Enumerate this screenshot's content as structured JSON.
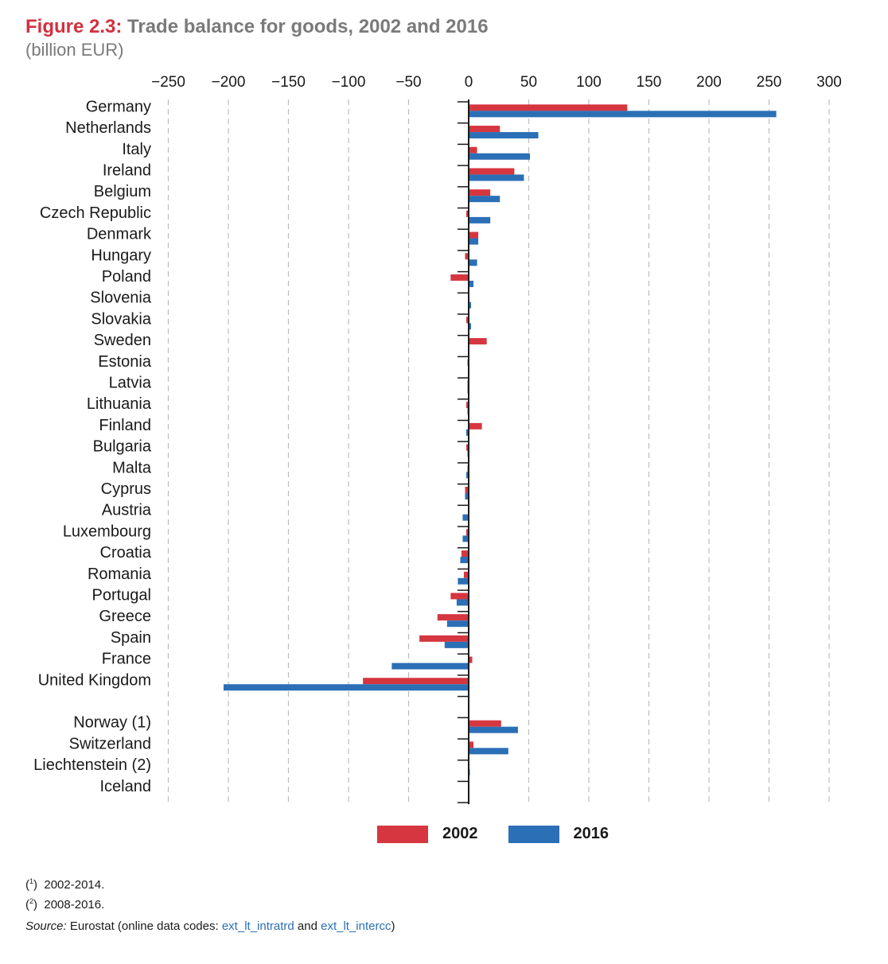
{
  "header": {
    "figure_label": "Figure 2.3:",
    "title": "Trade balance for goods, 2002 and 2016",
    "subtitle": "(billion EUR)"
  },
  "colors": {
    "s2002": "#d6363f",
    "s2016": "#2b6fb6",
    "grid": "#bdbdbd"
  },
  "legend": {
    "s2002": "2002",
    "s2016": "2016"
  },
  "notes": {
    "n1_mark": "1",
    "n1_text": "2002-2014.",
    "n2_mark": "2",
    "n2_text": "2008-2016.",
    "source_label": "Source:",
    "source_text": "Eurostat (online data codes:",
    "code1": "ext_lt_intratrd",
    "and": "and",
    "code2": "ext_lt_intercc",
    "close": ")"
  },
  "chart_data": {
    "type": "bar",
    "orientation": "horizontal",
    "title": "Trade balance for goods, 2002 and 2016",
    "unit": "billion EUR",
    "xlim": [
      -250,
      300
    ],
    "ticks": [
      -250,
      -200,
      -150,
      -100,
      -50,
      0,
      50,
      100,
      150,
      200,
      250,
      300
    ],
    "tick_labels": [
      "−250",
      "−200",
      "−150",
      "−100",
      "−50",
      "0",
      "50",
      "100",
      "150",
      "200",
      "250",
      "300"
    ],
    "grid": "vertical dashed",
    "legend_position": "bottom",
    "groups": [
      {
        "categories": [
          "Germany",
          "Netherlands",
          "Italy",
          "Ireland",
          "Belgium",
          "Czech Republic",
          "Denmark",
          "Hungary",
          "Poland",
          "Slovenia",
          "Slovakia",
          "Sweden",
          "Estonia",
          "Latvia",
          "Lithuania",
          "Finland",
          "Bulgaria",
          "Malta",
          "Cyprus",
          "Austria",
          "Luxembourg",
          "Croatia",
          "Romania",
          "Portugal",
          "Greece",
          "Spain",
          "France",
          "United Kingdom"
        ],
        "series": [
          {
            "name": "2002",
            "values": [
              132,
              26,
              7,
              38,
              18,
              -2,
              8,
              -3,
              -15,
              0,
              -2,
              15,
              -1,
              -1,
              -2,
              11,
              -2,
              -1,
              -3,
              0,
              -2,
              -6,
              -4,
              -15,
              -26,
              -41,
              3,
              -88
            ]
          },
          {
            "name": "2016",
            "values": [
              256,
              58,
              51,
              46,
              26,
              18,
              8,
              7,
              4,
              2,
              2,
              0,
              0,
              -1,
              -1,
              -2,
              -1,
              -2,
              -3,
              -5,
              -5,
              -7,
              -9,
              -10,
              -18,
              -20,
              -64,
              -204
            ]
          }
        ]
      },
      {
        "categories": [
          "Norway (1)",
          "Switzerland",
          "Liechtenstein (2)",
          "Iceland"
        ],
        "series": [
          {
            "name": "2002",
            "values": [
              27,
              4,
              0,
              0
            ]
          },
          {
            "name": "2016",
            "values": [
              41,
              33,
              1,
              0
            ]
          }
        ]
      }
    ]
  }
}
